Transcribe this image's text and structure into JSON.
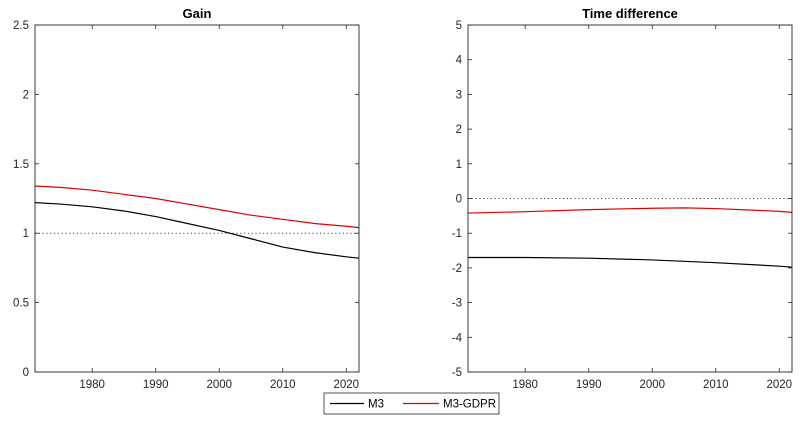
{
  "legend": {
    "entries": [
      {
        "label": "M3",
        "color": "#000000"
      },
      {
        "label": "M3-GDPR",
        "color": "#e00000"
      }
    ]
  },
  "chart_data": [
    {
      "type": "line",
      "title": "Gain",
      "xlabel": "",
      "ylabel": "",
      "xlim": [
        1971,
        2022
      ],
      "ylim": [
        0,
        2.5
      ],
      "xticks": [
        1980,
        1990,
        2000,
        2010,
        2020
      ],
      "yticks": [
        0,
        0.5,
        1,
        1.5,
        2,
        2.5
      ],
      "ytick_labels": [
        "0",
        "0.5",
        "1",
        "1.5",
        "2",
        "2.5"
      ],
      "reference_line": {
        "y": 1,
        "style": "dotted"
      },
      "grid": false,
      "series": [
        {
          "name": "M3",
          "color": "#000000",
          "x": [
            1971,
            1975,
            1980,
            1985,
            1990,
            1995,
            2000,
            2005,
            2010,
            2015,
            2020,
            2022
          ],
          "y": [
            1.22,
            1.21,
            1.19,
            1.16,
            1.12,
            1.07,
            1.02,
            0.96,
            0.9,
            0.86,
            0.83,
            0.82
          ]
        },
        {
          "name": "M3-GDPR",
          "color": "#e00000",
          "x": [
            1971,
            1975,
            1980,
            1985,
            1990,
            1995,
            2000,
            2005,
            2010,
            2015,
            2020,
            2022
          ],
          "y": [
            1.34,
            1.33,
            1.31,
            1.28,
            1.25,
            1.21,
            1.17,
            1.13,
            1.1,
            1.07,
            1.05,
            1.04
          ]
        }
      ]
    },
    {
      "type": "line",
      "title": "Time difference",
      "xlabel": "",
      "ylabel": "",
      "xlim": [
        1971,
        2022
      ],
      "ylim": [
        -5,
        5
      ],
      "xticks": [
        1980,
        1990,
        2000,
        2010,
        2020
      ],
      "yticks": [
        -5,
        -4,
        -3,
        -2,
        -1,
        0,
        1,
        2,
        3,
        4,
        5
      ],
      "ytick_labels": [
        "-5",
        "-4",
        "-3",
        "-2",
        "-1",
        "0",
        "1",
        "2",
        "3",
        "4",
        "5"
      ],
      "reference_line": {
        "y": 0,
        "style": "dotted"
      },
      "grid": false,
      "series": [
        {
          "name": "M3",
          "color": "#000000",
          "x": [
            1971,
            1980,
            1990,
            2000,
            2010,
            2020,
            2022
          ],
          "y": [
            -1.7,
            -1.7,
            -1.72,
            -1.77,
            -1.85,
            -1.95,
            -1.98
          ]
        },
        {
          "name": "M3-GDPR",
          "color": "#e00000",
          "x": [
            1971,
            1980,
            1990,
            2000,
            2005,
            2010,
            2020,
            2022
          ],
          "y": [
            -0.42,
            -0.38,
            -0.32,
            -0.28,
            -0.27,
            -0.29,
            -0.37,
            -0.4
          ]
        }
      ]
    }
  ]
}
